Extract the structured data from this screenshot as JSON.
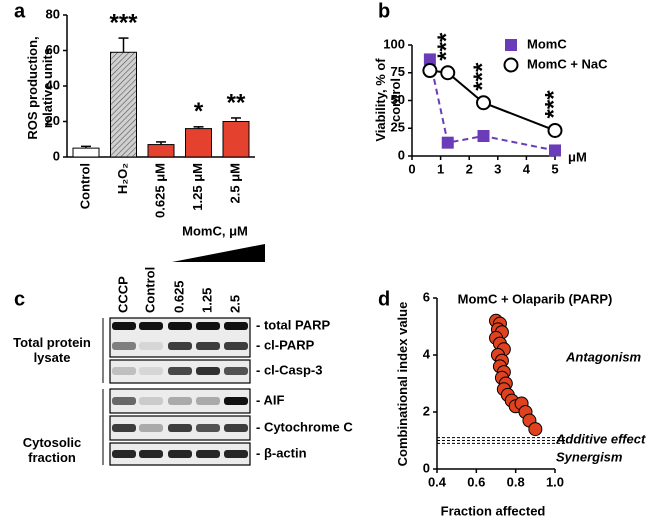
{
  "chart_data": [
    {
      "type": "bar",
      "label": "a",
      "ylabel": "ROS production, relative units",
      "categories": [
        "Control",
        "H₂O₂",
        "0.625 μM",
        "1.25 μM",
        "2.5 μM"
      ],
      "values": [
        5,
        59,
        7,
        16,
        20
      ],
      "errors": [
        1,
        8,
        1.5,
        1,
        2
      ],
      "colors": [
        "#ffffff",
        "#b5b5b5",
        "#e5412f",
        "#e5412f",
        "#e5412f"
      ],
      "hatch": [
        false,
        true,
        false,
        false,
        false
      ],
      "annotations": [
        {
          "x": "H₂O₂",
          "text": "***"
        },
        {
          "x": "1.25 μM",
          "text": "*"
        },
        {
          "x": "2.5 μM",
          "text": "**"
        }
      ],
      "ylim": [
        0,
        80
      ],
      "yticks": [
        0,
        20,
        40,
        60,
        80
      ]
    },
    {
      "type": "line",
      "label": "b",
      "ylabel": "Viability, % of control",
      "xunit": "μM",
      "x": [
        0.625,
        1.25,
        2.5,
        5
      ],
      "series": [
        {
          "name": "MomC",
          "color": "#6a3cb8",
          "marker": "square",
          "dashed": true,
          "values": [
            87,
            12,
            18,
            5
          ]
        },
        {
          "name": "MomC + NaC",
          "color": "#000000",
          "marker": "circle",
          "dashed": false,
          "values": [
            77,
            75,
            48,
            23
          ]
        }
      ],
      "annotations": [
        {
          "x": 1.25,
          "text": "***"
        },
        {
          "x": 2.5,
          "text": "***"
        },
        {
          "x": 5,
          "text": "***"
        }
      ],
      "xlim": [
        0,
        5
      ],
      "xticks": [
        0,
        1,
        2,
        3,
        4,
        5
      ],
      "ylim": [
        0,
        100
      ],
      "yticks": [
        0,
        25,
        50,
        75,
        100
      ]
    },
    {
      "type": "scatter",
      "label": "d",
      "title": "MomC + Olaparib (PARP)",
      "xlabel": "Fraction affected",
      "ylabel": "Combinational index value",
      "color": "#e0421f",
      "x": [
        0.7,
        0.72,
        0.71,
        0.73,
        0.7,
        0.72,
        0.74,
        0.71,
        0.73,
        0.72,
        0.74,
        0.73,
        0.75,
        0.74,
        0.76,
        0.78,
        0.8,
        0.83,
        0.85,
        0.87,
        0.9
      ],
      "values": [
        5.2,
        5.1,
        4.9,
        4.8,
        4.6,
        4.4,
        4.2,
        4.0,
        3.8,
        3.6,
        3.4,
        3.2,
        3.0,
        2.8,
        2.6,
        2.4,
        2.2,
        2.3,
        2.0,
        1.7,
        1.4
      ],
      "hlines": [
        0.9,
        1,
        1.1
      ],
      "annotations": [
        "Antagonism",
        "Additive effect",
        "Synergism"
      ],
      "xlim": [
        0.4,
        1
      ],
      "xticks": [
        0.4,
        0.6,
        0.8,
        {
          "value": 1,
          "label": "1.0"
        }
      ],
      "ylim": [
        0,
        6
      ],
      "yticks": [
        0,
        2,
        4,
        6
      ]
    }
  ],
  "blot": {
    "label": "c",
    "header": "MomC, μM",
    "lanes": [
      "CCCP",
      "Control",
      "0.625",
      "1.25",
      "2.5"
    ],
    "groups": [
      "Total protein lysate",
      "Cytosolic fraction"
    ],
    "bands": [
      "- total PARP",
      "- cl-PARP",
      "- cl-Casp-3",
      "- AIF",
      "- Cytochrome C",
      "- β-actin"
    ]
  }
}
